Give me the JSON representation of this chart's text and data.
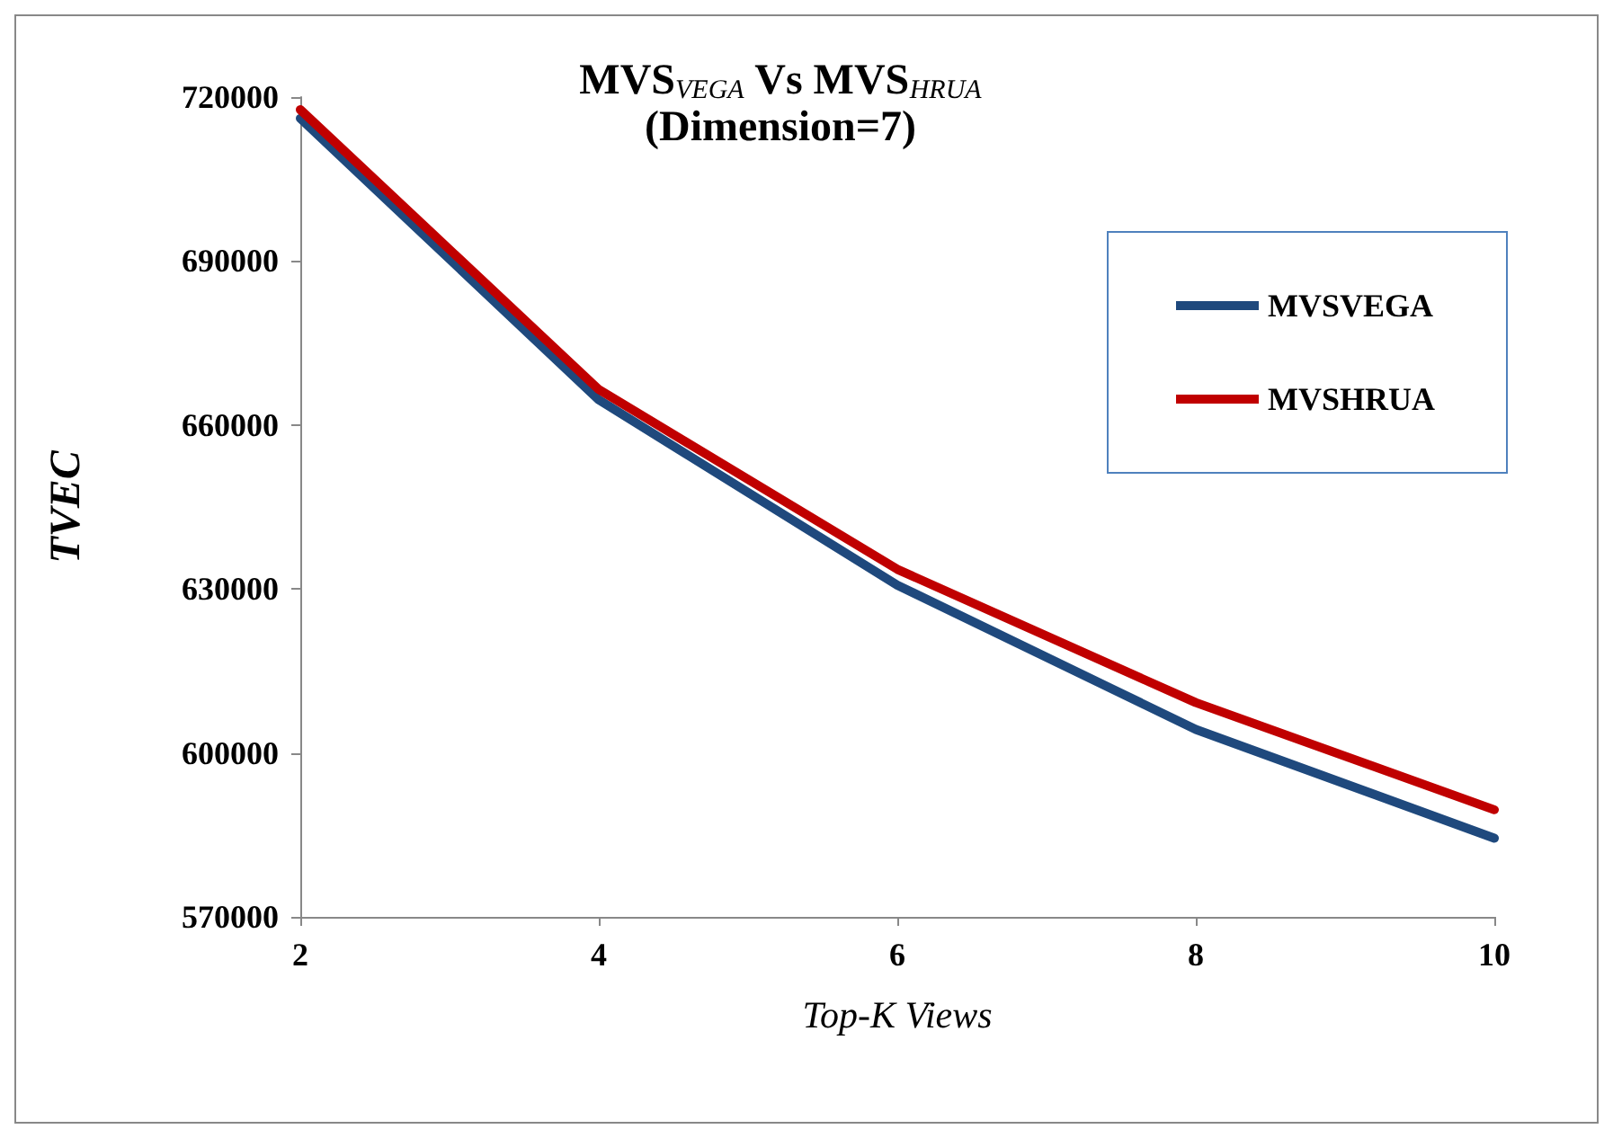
{
  "chart_data": {
    "type": "line",
    "title": "MVS$_{VEGA}$ Vs MVS$_{HRUA}$\n(Dimension=7)",
    "xlabel": "Top-K Views",
    "ylabel": "TVEC",
    "x": [
      2,
      4,
      6,
      8,
      10
    ],
    "series": [
      {
        "name": "MVSVEGA",
        "color": "#1f497d",
        "values": [
          716100,
          664600,
          630700,
          604300,
          584400
        ]
      },
      {
        "name": "MVSHRUA",
        "color": "#c00000",
        "values": [
          717700,
          666500,
          633600,
          609200,
          589600
        ]
      }
    ],
    "xlim": [
      2,
      10
    ],
    "xticks": [
      2,
      4,
      6,
      8,
      10
    ],
    "ylim": [
      570000,
      720000
    ],
    "yticks": [
      570000,
      600000,
      630000,
      660000,
      690000,
      720000
    ],
    "grid": false,
    "legend": "top right",
    "marker": "none",
    "line_style": "solid"
  }
}
